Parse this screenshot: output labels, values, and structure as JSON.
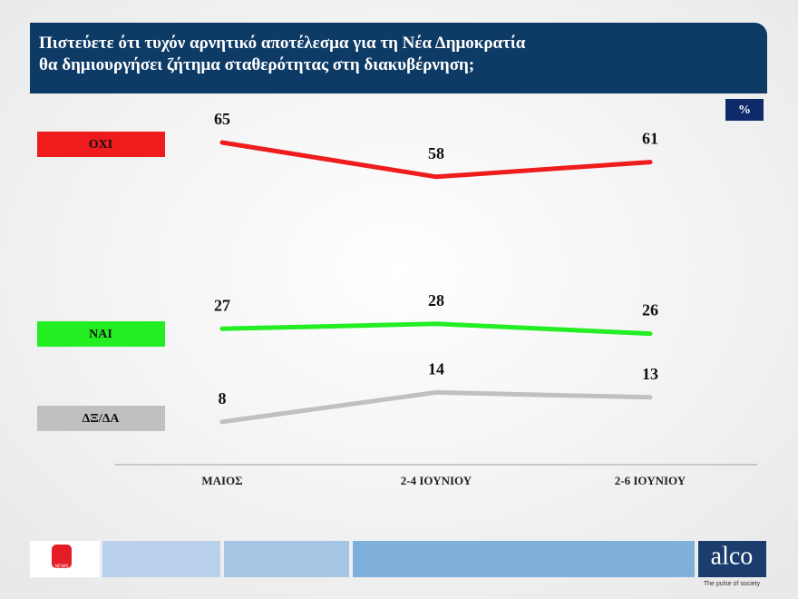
{
  "chart_data": {
    "type": "line",
    "title": "Πιστεύετε ότι τυχόν αρνητικό αποτέλεσμα για τη Νέα Δημοκρατία\nθα δημιουργήσει ζήτημα σταθερότητας στη διακυβέρνηση;",
    "unit_label": "%",
    "categories": [
      "ΜΑΙΟΣ",
      "2-4 ΙΟΥΝΙΟΥ",
      "2-6 ΙΟΥΝΙΟΥ"
    ],
    "series": [
      {
        "name": "ΟΧΙ",
        "color": "#ee1c1c",
        "values": [
          65,
          58,
          61
        ]
      },
      {
        "name": "ΝΑΙ",
        "color": "#22ee22",
        "values": [
          27,
          28,
          26
        ]
      },
      {
        "name": "ΔΞ/ΔΑ",
        "color": "#c0c0c0",
        "values": [
          8,
          14,
          13
        ]
      }
    ]
  },
  "footer": {
    "logo_text": "NEWS",
    "brand": "alco",
    "tagline": "The pulse of society"
  }
}
